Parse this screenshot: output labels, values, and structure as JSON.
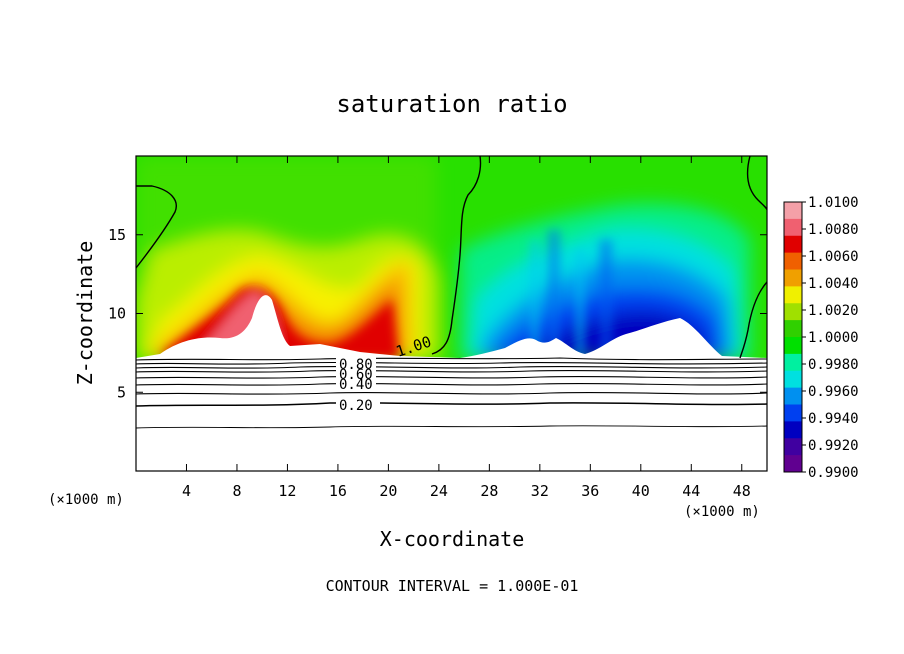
{
  "chart_data": {
    "type": "heatmap",
    "title": "saturation ratio",
    "xlabel": "X-coordinate",
    "ylabel": "Z-coordinate",
    "x_unit_left": "(×1000 m)",
    "x_unit_right": "(×1000 m)",
    "xlim": [
      0,
      50
    ],
    "ylim": [
      0,
      20
    ],
    "x_ticks": [
      4,
      8,
      12,
      16,
      20,
      24,
      28,
      32,
      36,
      40,
      44,
      48
    ],
    "y_ticks": [
      5,
      10,
      15
    ],
    "footer": "CONTOUR INTERVAL = 1.000E-01",
    "colorbar": {
      "min": 0.99,
      "max": 1.01,
      "labels": [
        "1.0100",
        "1.0080",
        "1.0060",
        "1.0040",
        "1.0020",
        "1.0000",
        "0.9980",
        "0.9960",
        "0.9940",
        "0.9920",
        "0.9900"
      ],
      "colors": [
        "#f4a0a8",
        "#f06070",
        "#e00000",
        "#f06000",
        "#f0a000",
        "#f0f000",
        "#a0e000",
        "#30d000",
        "#00e000",
        "#00f0a0",
        "#00e0e0",
        "#0090f0",
        "#0040f0",
        "#0000c0",
        "#4000a0",
        "#600090"
      ]
    },
    "contour_labels": [
      {
        "text": "1.00",
        "x": 21.6,
        "z": 7.6
      },
      {
        "text": "0.80",
        "x": 17.6,
        "z": 6.9
      },
      {
        "text": "0.60",
        "x": 17.6,
        "z": 6.3
      },
      {
        "text": "0.40",
        "x": 17.6,
        "z": 5.6
      },
      {
        "text": "0.20",
        "x": 17.6,
        "z": 4.3
      }
    ],
    "contour_levels": [
      {
        "level": 0.9,
        "z": 7.2
      },
      {
        "level": 0.8,
        "z": 6.9
      },
      {
        "level": 0.7,
        "z": 6.6
      },
      {
        "level": 0.6,
        "z": 6.3
      },
      {
        "level": 0.5,
        "z": 6.0
      },
      {
        "level": 0.4,
        "z": 5.6
      },
      {
        "level": 0.3,
        "z": 5.1
      },
      {
        "level": 0.2,
        "z": 4.4
      },
      {
        "level": 0.1,
        "z": 2.9
      }
    ],
    "anomalies": [
      {
        "sign": "positive",
        "x_range": [
          0,
          22
        ],
        "peak_x": 10,
        "peak_z": 12.5,
        "peak_value": 1.008
      },
      {
        "sign": "negative",
        "x_range": [
          26,
          48
        ],
        "peak_x": 40,
        "peak_z": 9.5,
        "peak_value": 0.99
      }
    ]
  }
}
